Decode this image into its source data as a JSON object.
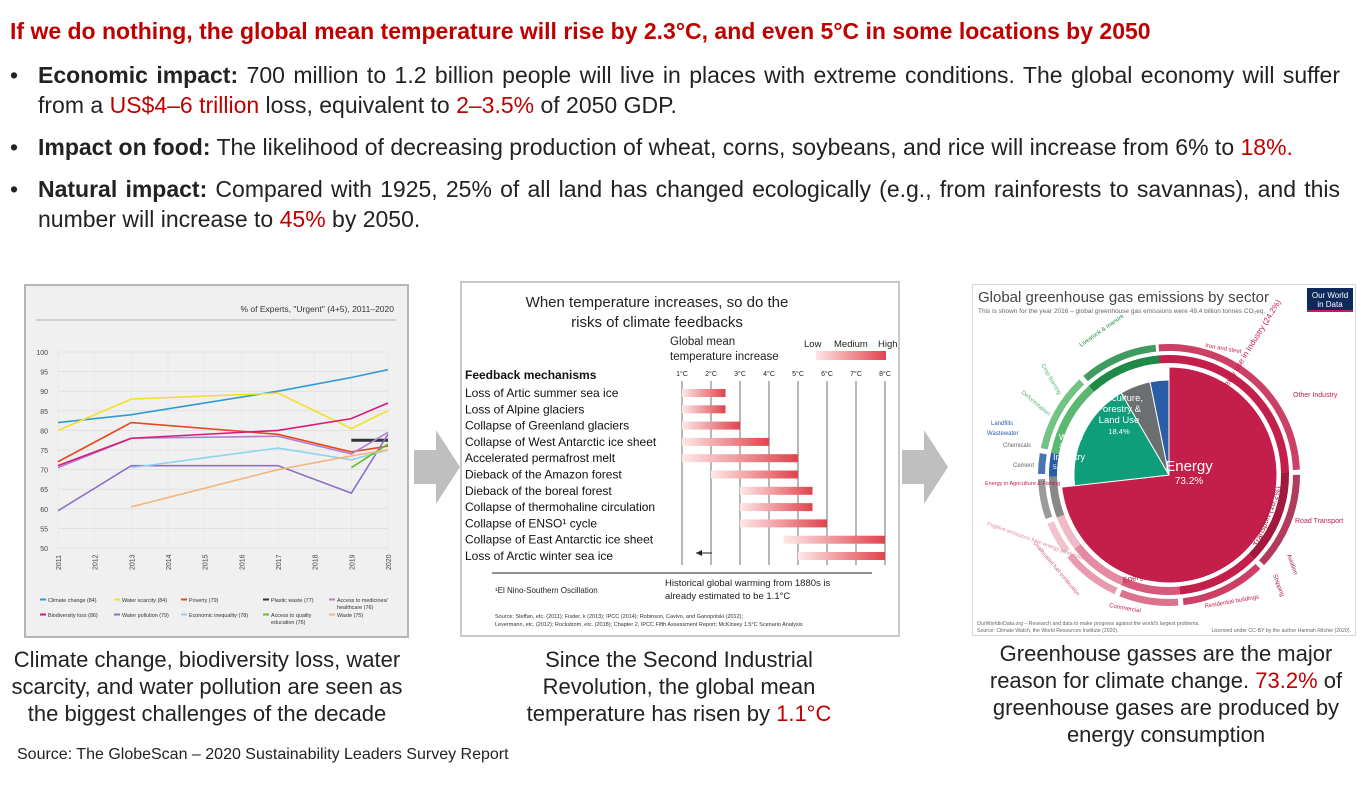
{
  "headline": "If we do nothing, the global mean temperature will rise by 2.3°C, and even 5°C in some locations by 2050",
  "bullets": {
    "economic": {
      "label": "Economic impact:",
      "text_a": " 700 million to 1.2 billion people will live in places with extreme conditions. The global economy will suffer from a ",
      "hl1": "US$4–6 trillion",
      "text_b": " loss, equivalent to ",
      "hl2": "2–3.5%",
      "text_c": " of 2050 GDP."
    },
    "food": {
      "label": "Impact on food:",
      "text_a": " The likelihood of decreasing production of wheat, corns, soybeans, and rice will increase from 6% to ",
      "hl1": "18%."
    },
    "natural": {
      "label": "Natural impact:",
      "text_a": " Compared with 1925, 25% of all land has changed ecologically (e.g., from rainforests to savannas), and this number will increase to ",
      "hl1": "45%",
      "text_b": " by 2050."
    }
  },
  "chart1": {
    "title": "% of Experts, \"Urgent\" (4+5), 2011–2020",
    "y_ticks": [
      "100",
      "95",
      "90",
      "85",
      "80",
      "75",
      "70",
      "65",
      "60",
      "55",
      "50"
    ],
    "x_ticks": [
      "2011",
      "2012",
      "2013",
      "2014",
      "2015",
      "2016",
      "2017",
      "2018",
      "2019",
      "2020"
    ],
    "legend": [
      {
        "label": "Climate change (84)",
        "color": "#2e9bd6"
      },
      {
        "label": "Water scarcity (84)",
        "color": "#f2e02a"
      },
      {
        "label": "Poverty (79)",
        "color": "#e8481c"
      },
      {
        "label": "Plastic waste (77)",
        "color": "#333333"
      },
      {
        "label": "Access to medicines/ healthcare (76)",
        "color": "#b07fd0"
      },
      {
        "label": "Biodiversity loss (86)",
        "color": "#d9197a"
      },
      {
        "label": "Water pollution (79)",
        "color": "#8e6fc9"
      },
      {
        "label": "Economic inequality (78)",
        "color": "#8fd3ef"
      },
      {
        "label": "Access to quality education (76)",
        "color": "#5fbf2a"
      },
      {
        "label": "Waste (75)",
        "color": "#f5b37a"
      }
    ]
  },
  "chart1_data": {
    "type": "line",
    "x": [
      2011,
      2012,
      2013,
      2014,
      2015,
      2016,
      2017,
      2018,
      2019,
      2020
    ],
    "ylim": [
      50,
      100
    ],
    "series": [
      {
        "name": "Climate change (84)",
        "color": "#2e9bd6",
        "points": [
          [
            2011,
            82
          ],
          [
            2013,
            84
          ],
          [
            2017,
            90
          ],
          [
            2019,
            93.5
          ],
          [
            2020,
            95.5
          ]
        ]
      },
      {
        "name": "Water scarcity (84)",
        "color": "#f2e02a",
        "points": [
          [
            2011,
            80
          ],
          [
            2013,
            88
          ],
          [
            2017,
            89.5
          ],
          [
            2019,
            80.5
          ],
          [
            2020,
            85
          ]
        ]
      },
      {
        "name": "Poverty (79)",
        "color": "#e8481c",
        "points": [
          [
            2011,
            72
          ],
          [
            2013,
            82
          ],
          [
            2017,
            79
          ],
          [
            2019,
            74.5
          ],
          [
            2020,
            76
          ]
        ]
      },
      {
        "name": "Plastic waste (77)",
        "color": "#333333",
        "points": [
          [
            2019,
            77.5
          ],
          [
            2020,
            77.5
          ]
        ]
      },
      {
        "name": "Access to medicines/ healthcare (76)",
        "color": "#b07fd0",
        "points": [
          [
            2011,
            70.5
          ],
          [
            2013,
            78
          ],
          [
            2017,
            78.5
          ],
          [
            2019,
            74
          ],
          [
            2020,
            79.5
          ]
        ]
      },
      {
        "name": "Biodiversity loss (86)",
        "color": "#d9197a",
        "points": [
          [
            2011,
            71
          ],
          [
            2013,
            78
          ],
          [
            2017,
            80
          ],
          [
            2019,
            83
          ],
          [
            2020,
            87
          ]
        ]
      },
      {
        "name": "Water pollution (79)",
        "color": "#8e6fc9",
        "points": [
          [
            2011,
            59.5
          ],
          [
            2013,
            71
          ],
          [
            2017,
            71
          ],
          [
            2019,
            64
          ],
          [
            2020,
            79
          ]
        ]
      },
      {
        "name": "Economic inequality (78)",
        "color": "#8fd3ef",
        "points": [
          [
            2013,
            70.5
          ],
          [
            2017,
            75.5
          ],
          [
            2019,
            72.5
          ],
          [
            2020,
            75
          ]
        ]
      },
      {
        "name": "Access to quality education (76)",
        "color": "#5fbf2a",
        "points": [
          [
            2019,
            70.5
          ],
          [
            2020,
            76.5
          ]
        ]
      },
      {
        "name": "Waste (75)",
        "color": "#f5b37a",
        "points": [
          [
            2013,
            60.5
          ],
          [
            2017,
            70
          ],
          [
            2019,
            73.5
          ],
          [
            2020,
            75
          ]
        ]
      }
    ]
  },
  "chart2": {
    "title_line1": "When temperature increases, so do the",
    "title_line2": "risks of climate feedbacks",
    "gmt_line1": "Global mean",
    "gmt_line2": "temperature increase",
    "risk_low": "Low",
    "risk_medium": "Medium",
    "risk_high": "High",
    "header": "Feedback mechanisms",
    "temps": [
      "1°C",
      "2°C",
      "3°C",
      "4°C",
      "5°C",
      "6°C",
      "7°C",
      "8°C"
    ],
    "rows": [
      {
        "label": "Loss of Artic summer sea ice",
        "start": 1.0,
        "end": 2.5
      },
      {
        "label": "Loss of Alpine glaciers",
        "start": 1.0,
        "end": 2.5
      },
      {
        "label": "Collapse of Greenland glaciers",
        "start": 1.0,
        "end": 3.0
      },
      {
        "label": "Collapse of West Antarctic ice sheet",
        "start": 1.0,
        "end": 4.0
      },
      {
        "label": "Accelerated permafrost melt",
        "start": 1.0,
        "end": 5.0
      },
      {
        "label": "Dieback of the Amazon forest",
        "start": 2.0,
        "end": 5.0
      },
      {
        "label": "Dieback of the boreal forest",
        "start": 3.0,
        "end": 5.5
      },
      {
        "label": "Collapse of thermohaline circulation",
        "start": 3.0,
        "end": 5.5
      },
      {
        "label": "Collapse of ENSO¹ cycle",
        "start": 3.0,
        "end": 6.0
      },
      {
        "label": "Collapse of East Antarctic ice sheet",
        "start": 4.5,
        "end": 8.0
      },
      {
        "label": "Loss of Arctic winter sea ice",
        "start": 5.0,
        "end": 8.0
      }
    ],
    "footnote": "¹El Nino-Southern Oscillation",
    "hist_line1": "Historical global warming from 1880s is",
    "hist_line2": "already estimated to be 1.1°C",
    "sources_line1": "Source: Steffan, etc. (2011); Fisder, k (2013); IPCC (2014); Robinson, Cavivo, and Ganopolski (2012);",
    "sources_line2": "Levermann, etc. (2012); Rockstrom, etc. (2018); Chapter 2, IPCC Fifth Assessment Report; McKinsey 1.5°C Scenario Analysis"
  },
  "chart3": {
    "title": "Global greenhouse gas emissions by sector",
    "subtitle": "This is shown for the year 2016 – global greenhouse gas emissions were 49.4 billion tonnes CO₂eq.",
    "logo_line1": "Our World",
    "logo_line2": "in Data",
    "inner": [
      {
        "label": "Energy",
        "value": "73.2%",
        "color": "#c41e4a"
      },
      {
        "label": "Agriculture, Forestry & Land Use",
        "value": "18.4%",
        "color": "#0e9e7a"
      },
      {
        "label": "Industry",
        "value": "5.2%",
        "color": "#6b6f70"
      },
      {
        "label": "Waste",
        "value": "3.2%",
        "color": "#2a5da8"
      }
    ],
    "outer_labels": [
      "Energy use in Industry (24.2%)",
      "Transport (16.2%)",
      "Energy use in buildings (17.5%)",
      "Other Industry",
      "Road Transport",
      "Residential buildings",
      "Commercial",
      "Iron and steel",
      "Livestock & manure",
      "Deforestation",
      "Crop burning",
      "Landfills",
      "Wastewater",
      "Chemicals",
      "Cement",
      "Energy in Agriculture & Fishing",
      "Fugitive emissions from energy production",
      "Unallocated fuel combustion",
      "Aviation",
      "Shipping"
    ],
    "footer_left": "OurWorldinData.org – Research and data to make progress against the world's largest problems.",
    "footer_source": "Source: Climate Watch, the World Resources Institute (2020).",
    "footer_right": "Licensed under CC-BY by the author Hannah Ritchie (2020)."
  },
  "chart3_data": {
    "type": "pie",
    "categories": [
      "Energy",
      "Agriculture, Forestry & Land Use",
      "Industry",
      "Waste"
    ],
    "values": [
      73.2,
      18.4,
      5.2,
      3.2
    ]
  },
  "captions": {
    "c1": "Climate change, biodiversity loss, water scarcity, and water pollution are seen as the biggest challenges of the decade",
    "c2_a": "Since the Second Industrial Revolution, the global mean temperature has risen by ",
    "c2_b": "1.1°C",
    "c3_a": "Greenhouse gasses are the major reason for climate change. ",
    "c3_b": "73.2%",
    "c3_c": " of greenhouse gases are produced by energy consumption"
  },
  "source": "Source: The GlobeScan – 2020 Sustainability Leaders Survey Report",
  "colors": {
    "accent": "#c00000",
    "arrow": "#bfbfbf"
  }
}
